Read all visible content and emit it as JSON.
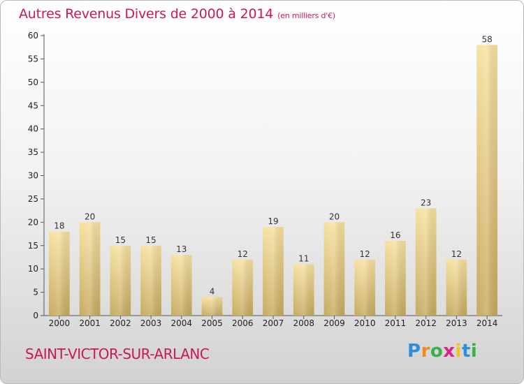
{
  "chart_data": {
    "type": "bar",
    "title": "Autres Revenus Divers de 2000 à 2014",
    "subtitle": "(en milliers d'€)",
    "categories": [
      "2000",
      "2001",
      "2002",
      "2003",
      "2004",
      "2005",
      "2006",
      "2007",
      "2008",
      "2009",
      "2010",
      "2011",
      "2012",
      "2013",
      "2014"
    ],
    "values": [
      18,
      20,
      15,
      15,
      13,
      4,
      12,
      19,
      11,
      20,
      12,
      16,
      23,
      12,
      58
    ],
    "yticks": [
      "0",
      "5",
      "10",
      "15",
      "20",
      "25",
      "30",
      "35",
      "40",
      "45",
      "50",
      "55",
      "60"
    ],
    "ylim": [
      0,
      60
    ],
    "grid": false,
    "legend": "none",
    "colors": {
      "bar_top": "#f7e1a0",
      "bar_bottom": "#c6aa60",
      "axis": "#555555",
      "title": "#c8185a"
    }
  },
  "footer": {
    "commune": "SAINT-VICTOR-SUR-ARLANC",
    "logo": {
      "letters": [
        "P",
        "r",
        "o",
        "x",
        "i",
        "t",
        "i"
      ],
      "colors": [
        "#2e8ed8",
        "#f08a1c",
        "#3bb04a",
        "#e0218a",
        "#f2c21b",
        "#2e8ed8",
        "#3bb04a"
      ]
    }
  }
}
